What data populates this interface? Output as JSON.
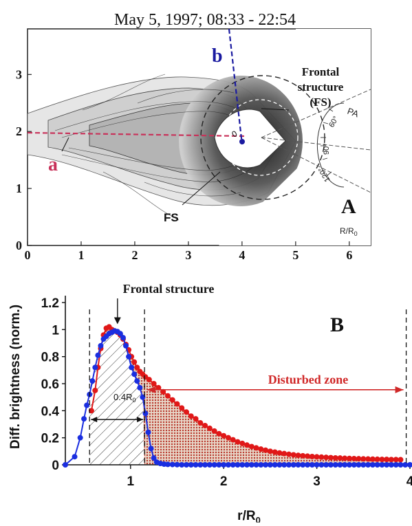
{
  "title": "May 5, 1997; 08:33 - 22:54",
  "colors": {
    "red": "#e01818",
    "blue": "#1a2ee0",
    "pink": "#c8325a",
    "navy": "#1a1aa0",
    "fill_dots": "#b8362a"
  },
  "chart_data": [
    {
      "type": "heatmap",
      "panel_label": "A",
      "x_ticks": [
        "0",
        "1",
        "2",
        "3",
        "4",
        "5",
        "6"
      ],
      "y_ticks": [
        "0",
        "1",
        "2",
        "3"
      ],
      "xlim": [
        0,
        6.4
      ],
      "ylim": [
        0,
        3.8
      ],
      "unit_label": "R/R",
      "unit_sub": "0",
      "annotations": {
        "frontal_structure": "Frontal structure (FS)",
        "fs_lines": [
          "Frontal",
          "structure",
          "(FS)"
        ],
        "fs_short": "FS",
        "slice_a": "a",
        "slice_b": "b",
        "pa_label": "PA",
        "pa_ticks": [
          "60°",
          "90°",
          "120°"
        ],
        "pa_marker": "0"
      }
    },
    {
      "type": "line",
      "panel_label": "B",
      "xlabel": "r/R",
      "xlabel_sub": "0",
      "ylabel": "Diff. brightness (norm.)",
      "xlim": [
        0.3,
        4.0
      ],
      "ylim": [
        0,
        1.2
      ],
      "x_ticks": [
        "1",
        "2",
        "3",
        "4"
      ],
      "y_ticks": [
        "0",
        "0.2",
        "0.4",
        "0.6",
        "0.8",
        "1",
        "1.2"
      ],
      "annotations": {
        "frontal_structure": "Frontal structure",
        "width_label": "0.4R",
        "width_sub": "0",
        "disturbed_zone": "Disturbed zone"
      },
      "markers": {
        "fs_left": 0.56,
        "fs_right": 1.15,
        "zone_end": 3.96
      },
      "series": [
        {
          "color": "#e01818",
          "x": [
            0.58,
            0.62,
            0.65,
            0.68,
            0.71,
            0.74,
            0.77,
            0.8,
            0.83,
            0.86,
            0.89,
            0.92,
            0.95,
            0.98,
            1.01,
            1.04,
            1.07,
            1.1,
            1.13,
            1.16,
            1.2,
            1.25,
            1.3,
            1.35,
            1.4,
            1.45,
            1.5,
            1.55,
            1.6,
            1.65,
            1.7,
            1.75,
            1.8,
            1.85,
            1.9,
            1.95,
            2.0,
            2.05,
            2.1,
            2.15,
            2.2,
            2.25,
            2.3,
            2.35,
            2.4,
            2.45,
            2.5,
            2.55,
            2.6,
            2.65,
            2.7,
            2.75,
            2.8,
            2.85,
            2.9,
            2.95,
            3.0,
            3.05,
            3.1,
            3.15,
            3.2,
            3.25,
            3.3,
            3.35,
            3.4,
            3.45,
            3.5,
            3.55,
            3.6,
            3.65,
            3.7,
            3.75,
            3.8,
            3.85,
            3.9
          ],
          "y": [
            0.4,
            0.55,
            0.72,
            0.86,
            0.96,
            1.01,
            1.02,
            1.0,
            0.99,
            0.98,
            0.96,
            0.93,
            0.89,
            0.85,
            0.8,
            0.76,
            0.72,
            0.69,
            0.67,
            0.65,
            0.63,
            0.6,
            0.57,
            0.54,
            0.51,
            0.48,
            0.45,
            0.42,
            0.39,
            0.36,
            0.34,
            0.31,
            0.29,
            0.27,
            0.25,
            0.23,
            0.215,
            0.2,
            0.185,
            0.17,
            0.158,
            0.146,
            0.135,
            0.125,
            0.116,
            0.108,
            0.1,
            0.094,
            0.088,
            0.083,
            0.078,
            0.074,
            0.07,
            0.067,
            0.064,
            0.061,
            0.059,
            0.057,
            0.055,
            0.053,
            0.051,
            0.05,
            0.048,
            0.047,
            0.046,
            0.045,
            0.044,
            0.043,
            0.042,
            0.041,
            0.04,
            0.04,
            0.039,
            0.039,
            0.038
          ]
        },
        {
          "color": "#1a2ee0",
          "x": [
            0.3,
            0.4,
            0.46,
            0.5,
            0.53,
            0.56,
            0.59,
            0.62,
            0.65,
            0.68,
            0.71,
            0.74,
            0.77,
            0.8,
            0.83,
            0.86,
            0.89,
            0.92,
            0.95,
            0.98,
            1.01,
            1.04,
            1.07,
            1.1,
            1.13,
            1.16,
            1.19,
            1.22,
            1.25,
            1.28,
            1.32,
            1.36,
            1.4,
            1.45,
            1.5,
            1.55,
            1.6,
            1.65,
            1.7,
            1.75,
            1.8,
            1.85,
            1.9,
            1.95,
            2.0,
            2.05,
            2.1,
            2.15,
            2.2,
            2.25,
            2.3,
            2.35,
            2.4,
            2.45,
            2.5,
            2.55,
            2.6,
            2.65,
            2.7,
            2.75,
            2.8,
            2.85,
            2.9,
            2.95,
            3.0,
            3.05,
            3.1,
            3.15,
            3.2,
            3.25,
            3.3,
            3.35,
            3.4,
            3.45,
            3.5,
            3.55,
            3.6,
            3.65,
            3.7,
            3.75,
            3.8,
            3.85,
            3.9,
            3.95,
            4.0
          ],
          "y": [
            0.0,
            0.06,
            0.2,
            0.34,
            0.44,
            0.52,
            0.62,
            0.72,
            0.81,
            0.88,
            0.93,
            0.95,
            0.97,
            0.98,
            0.99,
            0.985,
            0.97,
            0.94,
            0.88,
            0.8,
            0.72,
            0.67,
            0.62,
            0.57,
            0.5,
            0.38,
            0.24,
            0.12,
            0.05,
            0.02,
            0.01,
            0.005,
            0.003,
            0.002,
            0.001,
            0.0,
            0.0,
            0.0,
            0.0,
            0.0,
            0.0,
            0.0,
            0.0,
            0.0,
            0.0,
            0.0,
            0.0,
            0.0,
            0.0,
            0.0,
            0.0,
            0.0,
            0.0,
            0.0,
            0.0,
            0.0,
            0.0,
            0.0,
            0.0,
            0.0,
            0.0,
            0.0,
            0.0,
            0.0,
            0.0,
            0.0,
            0.0,
            0.0,
            0.0,
            0.0,
            0.0,
            0.0,
            0.0,
            0.0,
            0.0,
            0.0,
            0.0,
            0.0,
            0.0,
            0.0,
            0.0,
            0.0,
            0.0,
            0.0,
            0.0
          ]
        }
      ]
    }
  ]
}
